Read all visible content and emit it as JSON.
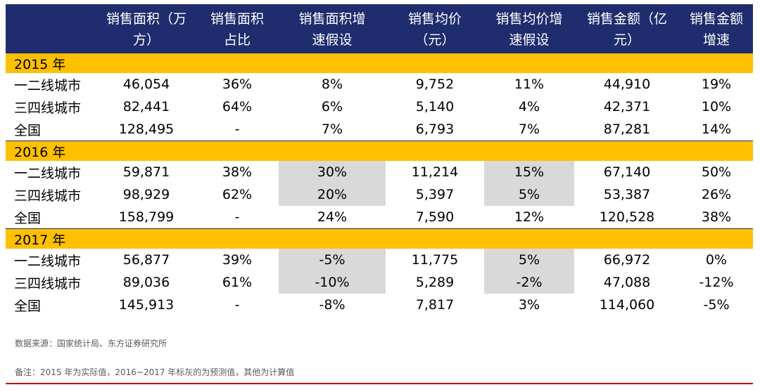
{
  "chart_data": {
    "type": "table",
    "headers": [
      "",
      "销售面积（万\n方）",
      "销售面积\n占比",
      "销售面积增\n速假设",
      "销售均价\n（元）",
      "销售均价增\n速假设",
      "销售金额（亿\n元）",
      "销售金额\n增速"
    ],
    "groups": [
      {
        "label": "2015 年",
        "rows": [
          {
            "cells": [
              "一二线城市",
              "46,054",
              "36%",
              "8%",
              "9,752",
              "11%",
              "44,910",
              "19%"
            ],
            "shaded": []
          },
          {
            "cells": [
              "三四线城市",
              "82,441",
              "64%",
              "6%",
              "5,140",
              "4%",
              "42,371",
              "10%"
            ],
            "shaded": []
          },
          {
            "cells": [
              "全国",
              "128,495",
              "-",
              "7%",
              "6,793",
              "7%",
              "87,281",
              "14%"
            ],
            "shaded": []
          }
        ]
      },
      {
        "label": "2016 年",
        "rows": [
          {
            "cells": [
              "一二线城市",
              "59,871",
              "38%",
              "30%",
              "11,214",
              "15%",
              "67,140",
              "50%"
            ],
            "shaded": [
              3,
              5
            ]
          },
          {
            "cells": [
              "三四线城市",
              "98,929",
              "62%",
              "20%",
              "5,397",
              "5%",
              "53,387",
              "26%"
            ],
            "shaded": [
              3,
              5
            ]
          },
          {
            "cells": [
              "全国",
              "158,799",
              "-",
              "24%",
              "7,590",
              "12%",
              "120,528",
              "38%"
            ],
            "shaded": []
          }
        ]
      },
      {
        "label": "2017 年",
        "rows": [
          {
            "cells": [
              "一二线城市",
              "56,877",
              "39%",
              "-5%",
              "11,775",
              "5%",
              "66,972",
              "0%"
            ],
            "shaded": [
              3,
              5
            ]
          },
          {
            "cells": [
              "三四线城市",
              "89,036",
              "61%",
              "-10%",
              "5,289",
              "-2%",
              "47,088",
              "-12%"
            ],
            "shaded": [
              3,
              5
            ]
          },
          {
            "cells": [
              "全国",
              "145,913",
              "-",
              "-8%",
              "7,817",
              "3%",
              "114,060",
              "-5%"
            ],
            "shaded": []
          }
        ]
      }
    ]
  },
  "notes": {
    "source": "数据来源：国家统计局、东方证券研究所",
    "remark": "备注：2015 年为实际值，2016~2017 年标灰的为预测值，其他为计算值"
  },
  "colors": {
    "header_bg": "#1f2d6e",
    "group_bg": "#ffc000",
    "shade": "#d9d9d9",
    "rule": "#c00000"
  }
}
